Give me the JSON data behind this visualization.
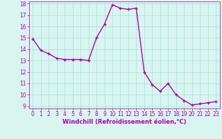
{
  "x": [
    0,
    1,
    2,
    3,
    4,
    5,
    6,
    7,
    8,
    9,
    10,
    11,
    12,
    13,
    14,
    15,
    16,
    17,
    18,
    19,
    20,
    21,
    22,
    23
  ],
  "y": [
    14.9,
    13.9,
    13.6,
    13.2,
    13.1,
    13.1,
    13.1,
    13.0,
    15.0,
    16.2,
    17.9,
    17.6,
    17.5,
    17.6,
    12.0,
    10.9,
    10.3,
    11.0,
    10.0,
    9.5,
    9.1,
    9.2,
    9.3,
    9.4
  ],
  "line_color": "#aa00aa",
  "marker": "+",
  "marker_size": 3,
  "marker_edge_width": 1.0,
  "bg_color": "#d8f5f0",
  "grid_color": "#aadddd",
  "xlabel": "Windchill (Refroidissement éolien,°C)",
  "xlabel_color": "#aa00aa",
  "tick_color": "#aa00aa",
  "ylim": [
    9,
    18
  ],
  "xlim": [
    -0.5,
    23.5
  ],
  "yticks": [
    9,
    10,
    11,
    12,
    13,
    14,
    15,
    16,
    17,
    18
  ],
  "xticks": [
    0,
    1,
    2,
    3,
    4,
    5,
    6,
    7,
    8,
    9,
    10,
    11,
    12,
    13,
    14,
    15,
    16,
    17,
    18,
    19,
    20,
    21,
    22,
    23
  ],
  "tick_fontsize": 5.5,
  "label_fontsize": 6,
  "line_width": 1.0
}
